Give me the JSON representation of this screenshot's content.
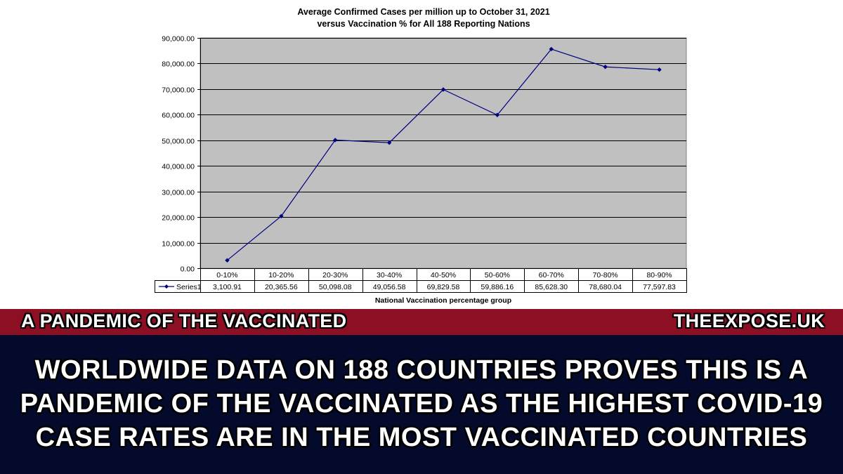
{
  "chart_data": {
    "type": "line",
    "title": "Average Confirmed Cases per million up to October 31, 2021",
    "subtitle": "versus Vaccination % for All 188 Reporting Nations",
    "xlabel": "National Vaccination percentage group",
    "ylabel": "",
    "ylim": [
      0,
      90000
    ],
    "yticks": [
      "0.00",
      "10,000.00",
      "20,000.00",
      "30,000.00",
      "40,000.00",
      "50,000.00",
      "60,000.00",
      "70,000.00",
      "80,000.00",
      "90,000.00"
    ],
    "ytick_values": [
      0,
      10000,
      20000,
      30000,
      40000,
      50000,
      60000,
      70000,
      80000,
      90000
    ],
    "categories": [
      "0-10%",
      "10-20%",
      "20-30%",
      "30-40%",
      "40-50%",
      "50-60%",
      "60-70%",
      "70-80%",
      "80-90%"
    ],
    "series": [
      {
        "name": "Series1",
        "values": [
          3100.91,
          20365.56,
          50098.08,
          49056.58,
          69829.58,
          59886.16,
          85628.3,
          78680.04,
          77597.83
        ],
        "labels": [
          "3,100.91",
          "20,365.56",
          "50,098.08",
          "49,056.58",
          "69,829.58",
          "59,886.16",
          "85,628.30",
          "78,680.04",
          "77,597.83"
        ]
      }
    ],
    "grid": true,
    "plot_background": "#c0c0c0",
    "line_color": "#000080",
    "legend": "data-table"
  },
  "banner": {
    "left": "A PANDEMIC OF THE VACCINATED",
    "right": "THEEXPOSE.UK"
  },
  "headline": {
    "lines": [
      "WORLDWIDE DATA ON 188 COUNTRIES PROVES THIS IS A",
      "PANDEMIC OF THE VACCINATED AS THE HIGHEST COVID-19",
      "CASE RATES ARE IN THE MOST VACCINATED COUNTRIES"
    ]
  },
  "colors": {
    "banner": "#8c0f24",
    "headline_bg": "#040a2b",
    "text": "#ffffff"
  }
}
